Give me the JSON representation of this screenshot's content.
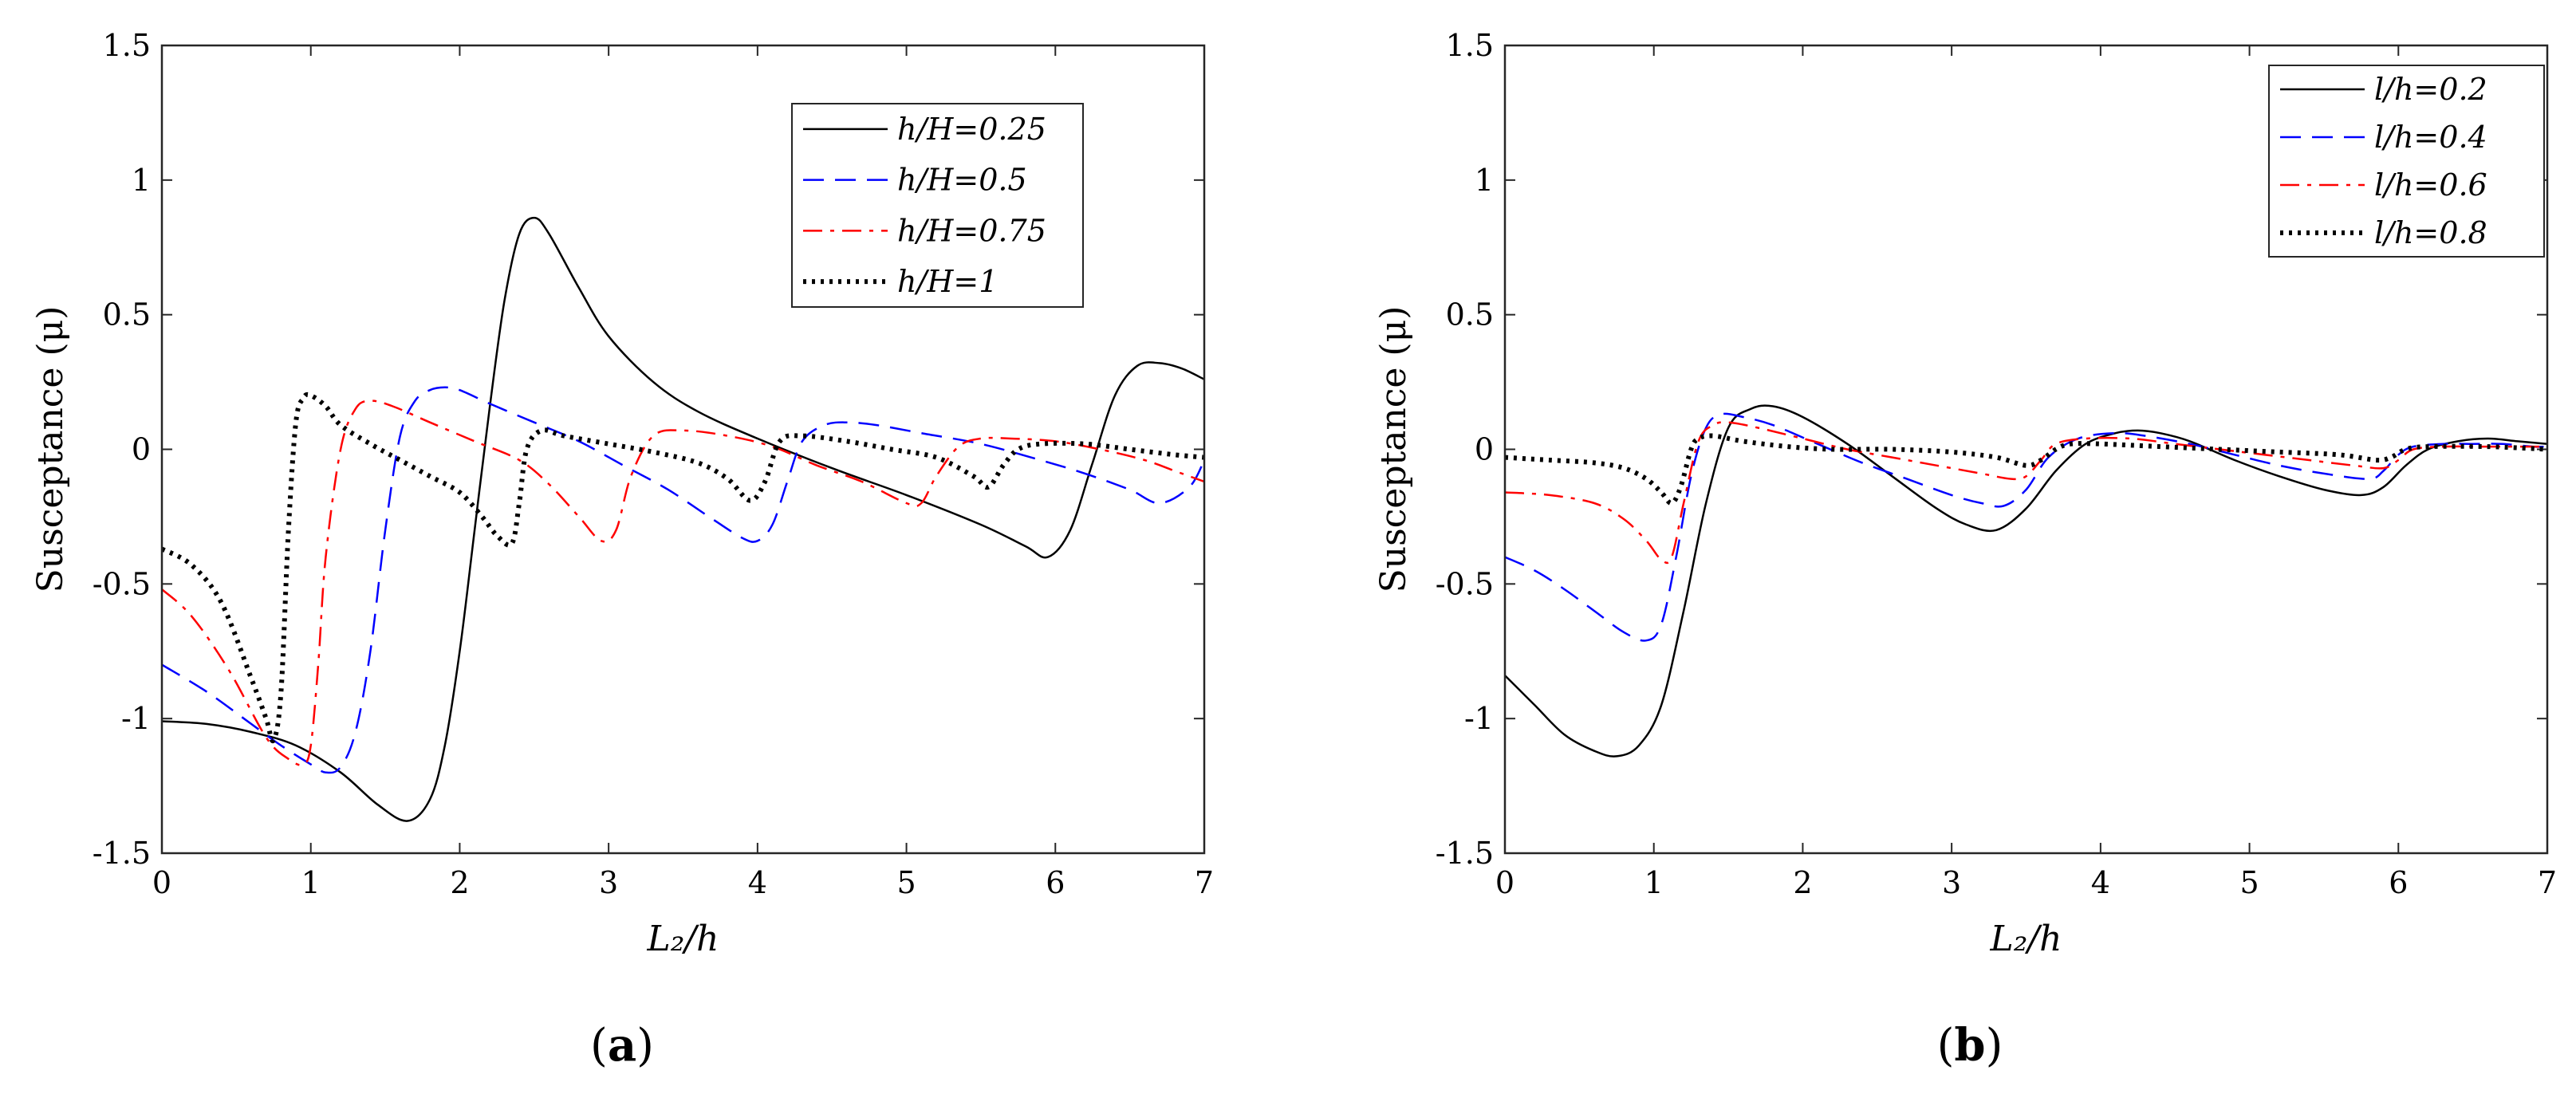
{
  "chart_data": [
    {
      "type": "line",
      "caption": "(a)",
      "caption_letter": "a",
      "xlabel": "L₂/h",
      "ylabel": "Susceptance (μ)",
      "xlim": [
        0,
        7
      ],
      "ylim": [
        -1.5,
        1.5
      ],
      "xticks": [
        0,
        1,
        2,
        3,
        4,
        5,
        6,
        7
      ],
      "yticks": [
        -1.5,
        -1,
        -0.5,
        0,
        0.5,
        1,
        1.5
      ],
      "ytick_labels": [
        "-1.5",
        "-1",
        "-0.5",
        "0",
        "0.5",
        "1",
        "1.5"
      ],
      "legend_position": "top-right",
      "series": [
        {
          "name": "h/H=0.25",
          "color": "#000000",
          "dash": "solid",
          "x": [
            0,
            0.3,
            0.6,
            0.9,
            1.2,
            1.45,
            1.65,
            1.8,
            1.9,
            2.0,
            2.1,
            2.2,
            2.3,
            2.4,
            2.5,
            2.6,
            2.8,
            3.0,
            3.3,
            3.6,
            4.0,
            4.5,
            5.0,
            5.5,
            5.8,
            5.95,
            6.1,
            6.25,
            6.4,
            6.55,
            6.7,
            6.85,
            7.0
          ],
          "y": [
            -1.01,
            -1.02,
            -1.05,
            -1.1,
            -1.2,
            -1.32,
            -1.38,
            -1.3,
            -1.1,
            -0.75,
            -0.3,
            0.15,
            0.55,
            0.8,
            0.86,
            0.8,
            0.6,
            0.42,
            0.25,
            0.14,
            0.04,
            -0.07,
            -0.17,
            -0.28,
            -0.36,
            -0.4,
            -0.3,
            -0.05,
            0.2,
            0.31,
            0.32,
            0.3,
            0.26
          ]
        },
        {
          "name": "h/H=0.5",
          "color": "#0000ff",
          "dash": "dashed",
          "x": [
            0,
            0.3,
            0.6,
            0.8,
            1.0,
            1.1,
            1.2,
            1.3,
            1.4,
            1.5,
            1.6,
            1.7,
            1.8,
            1.9,
            2.0,
            2.2,
            2.5,
            2.8,
            3.1,
            3.4,
            3.7,
            3.9,
            4.0,
            4.1,
            4.2,
            4.3,
            4.45,
            4.6,
            4.8,
            5.1,
            5.5,
            5.9,
            6.2,
            6.5,
            6.7,
            6.9,
            7.0
          ],
          "y": [
            -0.8,
            -0.9,
            -1.02,
            -1.1,
            -1.17,
            -1.2,
            -1.18,
            -1.05,
            -0.75,
            -0.3,
            0.05,
            0.18,
            0.22,
            0.23,
            0.22,
            0.17,
            0.1,
            0.03,
            -0.06,
            -0.15,
            -0.26,
            -0.33,
            -0.34,
            -0.28,
            -0.12,
            0.03,
            0.09,
            0.1,
            0.09,
            0.06,
            0.02,
            -0.04,
            -0.09,
            -0.15,
            -0.2,
            -0.14,
            -0.04
          ]
        },
        {
          "name": "h/H=0.75",
          "color": "#ff0000",
          "dash": "dashdot",
          "x": [
            0,
            0.2,
            0.45,
            0.7,
            0.85,
            0.95,
            1.0,
            1.05,
            1.1,
            1.2,
            1.3,
            1.4,
            1.55,
            1.8,
            2.1,
            2.4,
            2.6,
            2.8,
            2.95,
            3.05,
            3.15,
            3.3,
            3.5,
            3.8,
            4.1,
            4.4,
            4.7,
            5.0,
            5.1,
            5.2,
            5.35,
            5.5,
            5.7,
            6.0,
            6.3,
            6.6,
            6.8,
            7.0
          ],
          "y": [
            -0.52,
            -0.62,
            -0.82,
            -1.07,
            -1.15,
            -1.17,
            -1.1,
            -0.8,
            -0.4,
            0.0,
            0.15,
            0.18,
            0.16,
            0.1,
            0.03,
            -0.04,
            -0.13,
            -0.25,
            -0.34,
            -0.3,
            -0.1,
            0.05,
            0.07,
            0.05,
            0.01,
            -0.06,
            -0.12,
            -0.2,
            -0.2,
            -0.1,
            0.01,
            0.04,
            0.04,
            0.03,
            0.0,
            -0.04,
            -0.08,
            -0.12
          ]
        },
        {
          "name": "h/H=1",
          "color": "#000000",
          "dash": "dotted",
          "x": [
            0,
            0.2,
            0.4,
            0.6,
            0.7,
            0.75,
            0.8,
            0.85,
            0.9,
            0.95,
            1.0,
            1.1,
            1.2,
            1.4,
            1.6,
            1.8,
            2.0,
            2.15,
            2.25,
            2.35,
            2.4,
            2.45,
            2.55,
            2.7,
            3.0,
            3.3,
            3.6,
            3.8,
            3.95,
            4.05,
            4.15,
            4.3,
            4.6,
            4.9,
            5.2,
            5.45,
            5.55,
            5.65,
            5.75,
            5.9,
            6.2,
            6.5,
            6.8,
            7.0
          ],
          "y": [
            -0.37,
            -0.43,
            -0.57,
            -0.85,
            -1.0,
            -1.08,
            -0.9,
            -0.3,
            0.1,
            0.19,
            0.2,
            0.16,
            0.09,
            0.02,
            -0.04,
            -0.1,
            -0.16,
            -0.25,
            -0.32,
            -0.35,
            -0.2,
            0.0,
            0.07,
            0.05,
            0.02,
            -0.01,
            -0.05,
            -0.11,
            -0.19,
            -0.12,
            0.03,
            0.05,
            0.03,
            0.0,
            -0.03,
            -0.1,
            -0.14,
            -0.06,
            0.0,
            0.02,
            0.02,
            0.0,
            -0.02,
            -0.03
          ]
        }
      ]
    },
    {
      "type": "line",
      "caption": "(b)",
      "caption_letter": "b",
      "xlabel": "L₂/h",
      "ylabel": "Susceptance (μ)",
      "xlim": [
        0,
        7
      ],
      "ylim": [
        -1.5,
        1.5
      ],
      "xticks": [
        0,
        1,
        2,
        3,
        4,
        5,
        6,
        7
      ],
      "yticks": [
        -1.5,
        -1,
        -0.5,
        0,
        0.5,
        1,
        1.5
      ],
      "ytick_labels": [
        "-1.5",
        "-1",
        "-0.5",
        "0",
        "0.5",
        "1",
        "1.5"
      ],
      "legend_position": "top-right",
      "series": [
        {
          "name": "l/h=0.2",
          "color": "#000000",
          "dash": "solid",
          "x": [
            0,
            0.2,
            0.4,
            0.6,
            0.75,
            0.9,
            1.05,
            1.2,
            1.35,
            1.5,
            1.65,
            1.8,
            2.0,
            2.3,
            2.6,
            2.9,
            3.1,
            3.3,
            3.5,
            3.7,
            3.9,
            4.1,
            4.25,
            4.4,
            4.6,
            4.9,
            5.2,
            5.5,
            5.75,
            5.9,
            6.05,
            6.2,
            6.4,
            6.6,
            6.8,
            7.0
          ],
          "y": [
            -0.84,
            -0.95,
            -1.06,
            -1.12,
            -1.14,
            -1.1,
            -0.95,
            -0.6,
            -0.2,
            0.08,
            0.15,
            0.16,
            0.12,
            0.02,
            -0.1,
            -0.22,
            -0.28,
            -0.3,
            -0.22,
            -0.08,
            0.02,
            0.06,
            0.07,
            0.06,
            0.03,
            -0.04,
            -0.1,
            -0.15,
            -0.17,
            -0.14,
            -0.06,
            0.0,
            0.03,
            0.04,
            0.03,
            0.02
          ]
        },
        {
          "name": "l/h=0.4",
          "color": "#0000ff",
          "dash": "dashed",
          "x": [
            0,
            0.2,
            0.4,
            0.6,
            0.8,
            0.95,
            1.05,
            1.15,
            1.25,
            1.35,
            1.45,
            1.6,
            1.8,
            2.1,
            2.4,
            2.7,
            3.0,
            3.2,
            3.35,
            3.5,
            3.65,
            3.85,
            4.1,
            4.3,
            4.6,
            4.9,
            5.2,
            5.5,
            5.8,
            5.9,
            6.0,
            6.1,
            6.3,
            6.5,
            6.7,
            6.9,
            7.0
          ],
          "y": [
            -0.4,
            -0.45,
            -0.52,
            -0.6,
            -0.68,
            -0.71,
            -0.65,
            -0.4,
            -0.1,
            0.08,
            0.13,
            0.12,
            0.09,
            0.02,
            -0.05,
            -0.11,
            -0.17,
            -0.2,
            -0.21,
            -0.15,
            -0.03,
            0.04,
            0.06,
            0.05,
            0.02,
            -0.02,
            -0.06,
            -0.09,
            -0.11,
            -0.08,
            -0.02,
            0.01,
            0.02,
            0.02,
            0.02,
            0.01,
            0.01
          ]
        },
        {
          "name": "l/h=0.6",
          "color": "#ff0000",
          "dash": "dashdot",
          "x": [
            0,
            0.3,
            0.6,
            0.8,
            0.95,
            1.05,
            1.12,
            1.2,
            1.3,
            1.4,
            1.5,
            1.7,
            2.0,
            2.3,
            2.6,
            2.9,
            3.2,
            3.4,
            3.5,
            3.6,
            3.7,
            3.9,
            4.2,
            4.5,
            4.8,
            5.1,
            5.4,
            5.7,
            5.9,
            6.0,
            6.1,
            6.3,
            6.6,
            6.9,
            7.0
          ],
          "y": [
            -0.16,
            -0.17,
            -0.2,
            -0.26,
            -0.34,
            -0.41,
            -0.4,
            -0.2,
            0.03,
            0.09,
            0.1,
            0.08,
            0.04,
            0.0,
            -0.03,
            -0.06,
            -0.09,
            -0.11,
            -0.1,
            -0.04,
            0.02,
            0.04,
            0.04,
            0.02,
            0.0,
            -0.02,
            -0.04,
            -0.06,
            -0.07,
            -0.04,
            0.0,
            0.01,
            0.01,
            0.01,
            0.01
          ]
        },
        {
          "name": "l/h=0.8",
          "color": "#000000",
          "dash": "dotted",
          "x": [
            0,
            0.3,
            0.6,
            0.8,
            0.95,
            1.05,
            1.12,
            1.18,
            1.25,
            1.3,
            1.4,
            1.6,
            1.9,
            2.2,
            2.6,
            3.0,
            3.3,
            3.5,
            3.6,
            3.7,
            3.8,
            4.0,
            4.4,
            4.8,
            5.2,
            5.6,
            5.85,
            5.95,
            6.05,
            6.2,
            6.6,
            7.0
          ],
          "y": [
            -0.03,
            -0.04,
            -0.05,
            -0.07,
            -0.11,
            -0.16,
            -0.2,
            -0.14,
            0.0,
            0.04,
            0.05,
            0.03,
            0.01,
            0.0,
            0.0,
            -0.01,
            -0.03,
            -0.06,
            -0.04,
            0.0,
            0.02,
            0.02,
            0.01,
            0.0,
            -0.01,
            -0.02,
            -0.04,
            -0.03,
            0.0,
            0.01,
            0.01,
            0.0
          ]
        }
      ]
    }
  ]
}
